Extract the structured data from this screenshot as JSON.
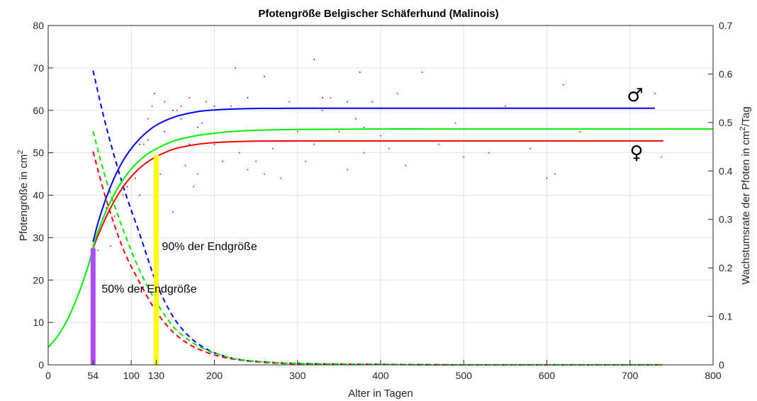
{
  "chart_data": {
    "type": "line",
    "title": "Pfotengröße Belgischer Schäferhund (Malinois)",
    "xlabel": "Alter in Tagen",
    "ylabel_left": "Pfotengröße in cm²",
    "ylabel_right": "Wachstumsrate der Pfoten in cm²/Tag",
    "xlim": [
      0,
      800
    ],
    "ylim_left": [
      0,
      80
    ],
    "ylim_right": [
      0,
      0.7
    ],
    "grid": true,
    "x_ticks": [
      "0",
      "100",
      "200",
      "300",
      "400",
      "500",
      "600",
      "700",
      "800"
    ],
    "x_extra_ticks": [
      {
        "value": 54,
        "label": "54"
      },
      {
        "value": 130,
        "label": "130"
      }
    ],
    "y_left_ticks": [
      "0",
      "10",
      "20",
      "30",
      "40",
      "50",
      "60",
      "70",
      "80"
    ],
    "y_right_ticks": [
      "0",
      "0.1",
      "0.2",
      "0.3",
      "0.4",
      "0.5",
      "0.6",
      "0.7"
    ],
    "colors": {
      "male": "#0000ff",
      "female": "#ff0000",
      "all": "#00ee00",
      "half": "#b04cff",
      "ninety": "#ffff00"
    },
    "size_series": [
      {
        "name": "male",
        "x": [
          54,
          60,
          70,
          80,
          90,
          100,
          110,
          120,
          130,
          140,
          150,
          160,
          180,
          200,
          220,
          250,
          300,
          400,
          500,
          600,
          730
        ],
        "y": [
          29,
          33.5,
          39.5,
          44.3,
          48.1,
          51,
          53.3,
          55.1,
          56.5,
          57.5,
          58.3,
          58.9,
          59.7,
          60.1,
          60.3,
          60.45,
          60.5,
          60.5,
          60.5,
          60.5,
          60.5
        ]
      },
      {
        "name": "female",
        "x": [
          54,
          60,
          70,
          80,
          90,
          100,
          110,
          120,
          130,
          140,
          150,
          160,
          180,
          200,
          220,
          250,
          300,
          400,
          500,
          600,
          740
        ],
        "y": [
          27.5,
          30.5,
          35,
          38.8,
          41.9,
          44.4,
          46.4,
          47.9,
          49.1,
          50,
          50.8,
          51.3,
          52,
          52.4,
          52.6,
          52.75,
          52.8,
          52.8,
          52.8,
          52.8,
          52.8
        ]
      },
      {
        "name": "all",
        "x": [
          0,
          10,
          20,
          30,
          40,
          50,
          54,
          60,
          70,
          80,
          90,
          100,
          110,
          120,
          130,
          140,
          150,
          160,
          180,
          200,
          220,
          250,
          300,
          400,
          500,
          600,
          700,
          800
        ],
        "y": [
          4.2,
          6.4,
          9.5,
          13.6,
          18.6,
          24.5,
          27.8,
          31.5,
          36.4,
          40.4,
          43.6,
          46.2,
          48.2,
          49.8,
          50.9,
          51.9,
          52.7,
          53.3,
          54.1,
          54.6,
          55,
          55.3,
          55.5,
          55.6,
          55.6,
          55.6,
          55.6,
          55.6
        ]
      }
    ],
    "rate_series": [
      {
        "name": "male",
        "x": [
          54,
          70,
          90,
          110,
          130,
          150,
          170,
          190,
          210,
          230,
          260,
          300,
          400,
          500,
          600,
          740
        ],
        "y": [
          0.607,
          0.49,
          0.37,
          0.27,
          0.17,
          0.1,
          0.058,
          0.033,
          0.019,
          0.011,
          0.006,
          0.003,
          0.001,
          0,
          0,
          0
        ]
      },
      {
        "name": "female",
        "x": [
          54,
          70,
          90,
          110,
          130,
          150,
          170,
          190,
          210,
          230,
          260,
          300,
          400,
          500,
          600,
          740
        ],
        "y": [
          0.44,
          0.34,
          0.24,
          0.17,
          0.11,
          0.068,
          0.042,
          0.026,
          0.016,
          0.01,
          0.005,
          0.002,
          0.001,
          0,
          0,
          0
        ]
      },
      {
        "name": "all",
        "x": [
          54,
          70,
          90,
          110,
          130,
          150,
          170,
          190,
          210,
          230,
          260,
          300,
          400,
          500,
          600,
          740
        ],
        "y": [
          0.482,
          0.38,
          0.28,
          0.195,
          0.13,
          0.08,
          0.05,
          0.031,
          0.019,
          0.011,
          0.006,
          0.003,
          0.001,
          0,
          0,
          0
        ]
      }
    ],
    "scatter": [
      {
        "name": "male",
        "x": [
          70,
          95,
          110,
          120,
          128,
          140,
          150,
          160,
          170,
          180,
          190,
          200,
          240,
          260,
          320,
          330,
          360,
          370,
          375,
          380
        ],
        "y": [
          37,
          42,
          52,
          53,
          64,
          55,
          60,
          58,
          52,
          56,
          60,
          61,
          63,
          68,
          72,
          63,
          62,
          58,
          69,
          56
        ]
      },
      {
        "name": "female",
        "x": [
          60,
          75,
          80,
          90,
          100,
          105,
          110,
          115,
          120,
          125,
          130,
          135,
          140,
          145,
          150,
          155,
          160,
          165,
          170,
          175,
          180,
          185,
          190,
          200,
          210,
          220,
          225,
          230,
          240,
          250,
          260,
          270,
          280,
          290,
          300,
          310,
          320,
          330,
          340,
          350,
          360,
          370,
          380,
          390,
          400,
          410,
          420,
          430,
          450,
          470,
          490,
          500,
          530,
          550,
          580,
          600,
          610,
          620,
          640,
          730,
          738
        ],
        "y": [
          27,
          28,
          35,
          40,
          36,
          44,
          40,
          52,
          58,
          61,
          49,
          45,
          62,
          58,
          36,
          60,
          61,
          47,
          63,
          42,
          45,
          57,
          62,
          52,
          48,
          61,
          70,
          50,
          46,
          48,
          45,
          51,
          44,
          62,
          55,
          48,
          52,
          60,
          63,
          55,
          46,
          58,
          50,
          62,
          54,
          51,
          64,
          47,
          69,
          52,
          57,
          49,
          50,
          61,
          51,
          44,
          45,
          66,
          55,
          64,
          49
        ]
      }
    ],
    "vertical_markers": [
      {
        "x": 54,
        "y": 27.5,
        "label": "50% der Endgröße",
        "color": "#b04cff"
      },
      {
        "x": 130,
        "y": 49.5,
        "label": "90% der Endgröße",
        "color": "#ffff00"
      }
    ],
    "legend_symbols": {
      "male": "♂",
      "female": "♀"
    }
  }
}
